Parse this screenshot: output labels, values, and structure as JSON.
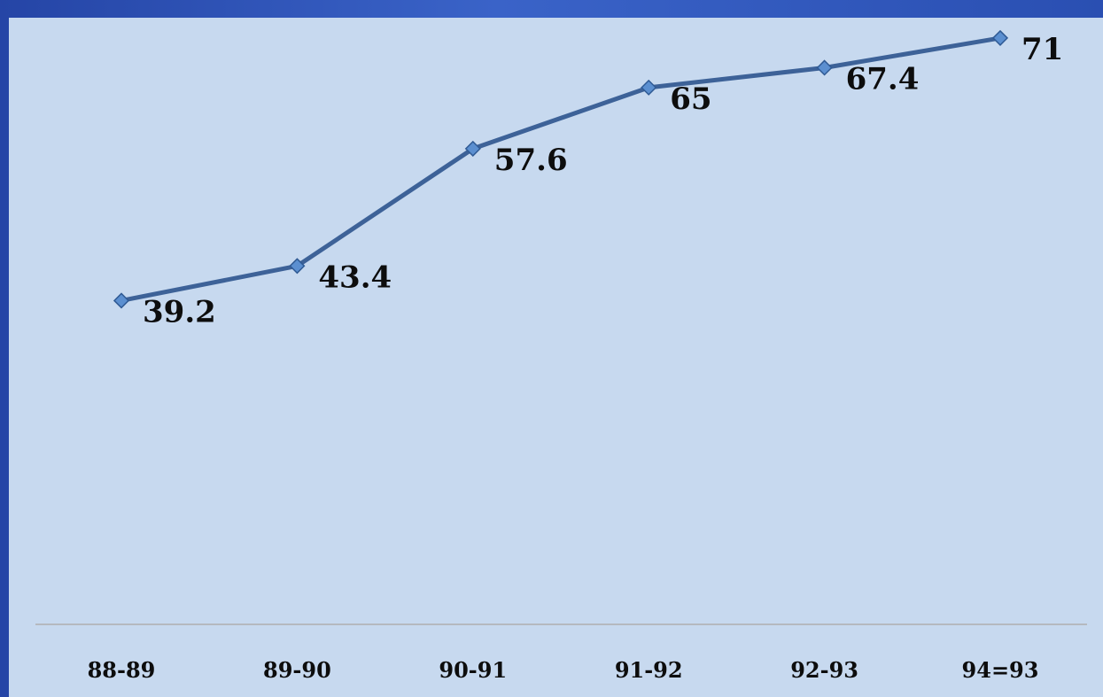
{
  "colors": {
    "frame": "#2f55bd",
    "plot_background": "#c7d9ef",
    "series_line": "#3d6298",
    "marker_fill": "#5b8fd0",
    "marker_stroke": "#2f5a94",
    "axis_line": "#b5b9bf",
    "text": "#0d0d0d"
  },
  "chart_data": {
    "type": "line",
    "categories": [
      "88-89",
      "89-90",
      "90-91",
      "91-92",
      "92-93",
      "94=93"
    ],
    "series": [
      {
        "values": [
          39.2,
          43.4,
          57.6,
          65,
          67.4,
          71
        ],
        "labels": [
          "39.2",
          "43.4",
          "57.6",
          "65",
          "67.4",
          "71"
        ],
        "marker": "diamond"
      }
    ],
    "title": "",
    "xlabel": "",
    "ylabel": "",
    "ylim": [
      0,
      80
    ],
    "grid": false,
    "legend": "none",
    "data_labels": true
  }
}
